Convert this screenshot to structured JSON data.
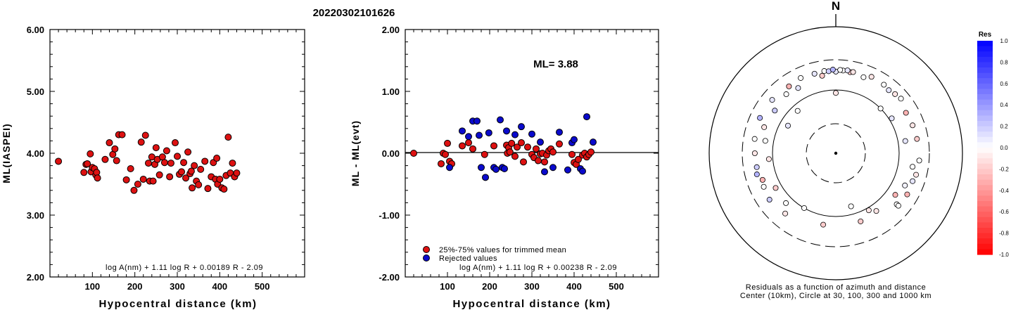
{
  "title": "20220302101626",
  "panels": {
    "left": {
      "ylabel": "ML(IASPEI)",
      "xlabel": "Hypocentral distance (km)",
      "formula": "log A(nm) + 1.11 log R + 0.00189 R - 2.09",
      "yticks": [
        "2.00",
        "3.00",
        "4.00",
        "5.00",
        "6.00"
      ],
      "xticks": [
        "100",
        "200",
        "300",
        "400",
        "500"
      ]
    },
    "middle": {
      "ylabel": "ML - ML(evt)",
      "xlabel": "Hypocentral distance (km)",
      "ml_text": "ML= 3.88",
      "legend": [
        "25%-75% values for trimmed mean",
        "Rejected values"
      ],
      "formula": "log A(nm) + 1.11 log R + 0.00238 R - 2.09",
      "yticks": [
        "-2.00",
        "-1.00",
        "0.00",
        "1.00",
        "2.00"
      ],
      "xticks": [
        "100",
        "200",
        "300",
        "400",
        "500"
      ]
    },
    "polar": {
      "north_label": "N",
      "caption_line1": "Residuals as a function of azimuth and distance",
      "caption_line2": "Center (10km), Circle at 30, 100, 300 and 1000 km"
    },
    "colorbar": {
      "title": "Res",
      "labels": [
        "1.0",
        "0.8",
        "0.6",
        "0.4",
        "0.2",
        "0.0",
        "-0.2",
        "-0.4",
        "-0.6",
        "-0.8",
        "-1.0"
      ]
    }
  },
  "colors": {
    "accepted": "#dd1111",
    "rejected": "#0a0acc",
    "line": "#000000"
  },
  "chart_data": [
    {
      "type": "scatter",
      "name": "ML vs distance",
      "xlim": [
        0,
        600
      ],
      "ylim": [
        2.0,
        6.0
      ],
      "points": [
        [
          20,
          3.87
        ],
        [
          80,
          3.69
        ],
        [
          85,
          3.82
        ],
        [
          88,
          3.83
        ],
        [
          95,
          3.99
        ],
        [
          97,
          3.7
        ],
        [
          100,
          3.77
        ],
        [
          105,
          3.75
        ],
        [
          108,
          3.65
        ],
        [
          110,
          3.69
        ],
        [
          112,
          3.6
        ],
        [
          130,
          3.9
        ],
        [
          140,
          4.17
        ],
        [
          148,
          3.98
        ],
        [
          153,
          4.07
        ],
        [
          157,
          3.88
        ],
        [
          162,
          4.3
        ],
        [
          170,
          4.3
        ],
        [
          180,
          3.57
        ],
        [
          190,
          3.75
        ],
        [
          198,
          3.4
        ],
        [
          207,
          3.5
        ],
        [
          215,
          4.18
        ],
        [
          220,
          3.58
        ],
        [
          225,
          4.29
        ],
        [
          232,
          3.84
        ],
        [
          235,
          3.55
        ],
        [
          240,
          3.94
        ],
        [
          243,
          3.55
        ],
        [
          247,
          3.82
        ],
        [
          250,
          4.09
        ],
        [
          253,
          3.9
        ],
        [
          258,
          3.65
        ],
        [
          265,
          3.94
        ],
        [
          270,
          3.85
        ],
        [
          275,
          4.04
        ],
        [
          282,
          3.62
        ],
        [
          285,
          3.84
        ],
        [
          295,
          4.17
        ],
        [
          300,
          3.95
        ],
        [
          305,
          3.66
        ],
        [
          310,
          3.7
        ],
        [
          315,
          3.85
        ],
        [
          320,
          3.6
        ],
        [
          325,
          4.02
        ],
        [
          330,
          3.67
        ],
        [
          333,
          3.71
        ],
        [
          335,
          3.44
        ],
        [
          340,
          3.8
        ],
        [
          345,
          3.55
        ],
        [
          350,
          3.49
        ],
        [
          355,
          3.74
        ],
        [
          365,
          3.87
        ],
        [
          372,
          3.43
        ],
        [
          380,
          3.62
        ],
        [
          385,
          3.85
        ],
        [
          390,
          3.58
        ],
        [
          393,
          3.92
        ],
        [
          395,
          3.5
        ],
        [
          400,
          3.58
        ],
        [
          405,
          3.44
        ],
        [
          410,
          3.42
        ],
        [
          415,
          3.64
        ],
        [
          420,
          4.26
        ],
        [
          425,
          3.68
        ],
        [
          430,
          3.84
        ],
        [
          435,
          3.62
        ],
        [
          440,
          3.68
        ]
      ]
    },
    {
      "type": "scatter",
      "name": "Residuals",
      "xlim": [
        0,
        600
      ],
      "ylim": [
        -2.0,
        2.0
      ],
      "series": [
        {
          "name": "25%-75% values for trimmed mean",
          "points": [
            [
              20,
              0.0
            ],
            [
              85,
              -0.17
            ],
            [
              90,
              0.0
            ],
            [
              95,
              -0.02
            ],
            [
              100,
              0.16
            ],
            [
              105,
              -0.13
            ],
            [
              110,
              -0.17
            ],
            [
              135,
              0.12
            ],
            [
              150,
              0.17
            ],
            [
              160,
              0.07
            ],
            [
              188,
              -0.02
            ],
            [
              210,
              0.12
            ],
            [
              240,
              0.13
            ],
            [
              242,
              0.0
            ],
            [
              245,
              0.09
            ],
            [
              248,
              0.02
            ],
            [
              252,
              0.16
            ],
            [
              260,
              -0.05
            ],
            [
              265,
              0.1
            ],
            [
              275,
              0.17
            ],
            [
              280,
              -0.14
            ],
            [
              290,
              0.1
            ],
            [
              300,
              -0.02
            ],
            [
              305,
              -0.07
            ],
            [
              310,
              0.07
            ],
            [
              315,
              -0.12
            ],
            [
              320,
              -0.01
            ],
            [
              325,
              0.0
            ],
            [
              330,
              -0.14
            ],
            [
              335,
              -0.03
            ],
            [
              340,
              0.04
            ],
            [
              345,
              0.07
            ],
            [
              350,
              0.02
            ],
            [
              365,
              0.15
            ],
            [
              395,
              -0.02
            ],
            [
              400,
              -0.15
            ],
            [
              405,
              -0.18
            ],
            [
              410,
              -0.1
            ],
            [
              420,
              -0.03
            ],
            [
              425,
              0.0
            ],
            [
              430,
              -0.06
            ],
            [
              435,
              -0.02
            ],
            [
              440,
              0.02
            ]
          ]
        },
        {
          "name": "Rejected values",
          "points": [
            [
              105,
              -0.23
            ],
            [
              135,
              0.36
            ],
            [
              150,
              0.27
            ],
            [
              160,
              0.52
            ],
            [
              170,
              0.52
            ],
            [
              175,
              0.29
            ],
            [
              180,
              -0.23
            ],
            [
              190,
              -0.39
            ],
            [
              198,
              0.33
            ],
            [
              210,
              -0.23
            ],
            [
              215,
              -0.26
            ],
            [
              225,
              0.54
            ],
            [
              230,
              -0.23
            ],
            [
              235,
              -0.25
            ],
            [
              240,
              0.36
            ],
            [
              260,
              0.3
            ],
            [
              275,
              0.43
            ],
            [
              300,
              0.31
            ],
            [
              320,
              0.18
            ],
            [
              330,
              -0.3
            ],
            [
              350,
              -0.23
            ],
            [
              365,
              0.34
            ],
            [
              385,
              -0.27
            ],
            [
              395,
              0.17
            ],
            [
              400,
              0.22
            ],
            [
              415,
              -0.25
            ],
            [
              420,
              -0.29
            ],
            [
              430,
              0.59
            ],
            [
              445,
              0.18
            ]
          ]
        }
      ]
    },
    {
      "type": "scatter",
      "name": "Residuals by azimuth and distance",
      "rings_km": [
        10,
        30,
        100,
        300,
        1000
      ],
      "points_unit": "azimuth_deg, distance_km, residual",
      "points": [
        [
          164,
          75,
          0.0
        ],
        [
          0,
          90,
          -0.1
        ],
        [
          318,
          80,
          0.0
        ],
        [
          300,
          75,
          0.1
        ],
        [
          45,
          100,
          0.0
        ],
        [
          58,
          110,
          0.1
        ],
        [
          150,
          110,
          -0.1
        ],
        [
          210,
          100,
          0.0
        ],
        [
          265,
          115,
          -0.1
        ],
        [
          240,
          125,
          -0.2
        ],
        [
          190,
          140,
          -0.2
        ],
        [
          125,
          140,
          -0.3
        ],
        [
          80,
          130,
          0.1
        ],
        [
          100,
          170,
          0.0
        ],
        [
          115,
          160,
          0.05
        ],
        [
          130,
          180,
          0.0
        ],
        [
          145,
          130,
          -0.1
        ],
        [
          160,
          140,
          -0.2
        ],
        [
          225,
          130,
          0.0
        ],
        [
          250,
          170,
          -0.3
        ],
        [
          280,
          135,
          0.0
        ],
        [
          290,
          160,
          -0.1
        ],
        [
          305,
          150,
          0.2
        ],
        [
          320,
          165,
          0.0
        ],
        [
          330,
          155,
          0.1
        ],
        [
          350,
          175,
          -0.2
        ],
        [
          0,
          195,
          0.1
        ],
        [
          5,
          205,
          0.0
        ],
        [
          10,
          200,
          -0.2
        ],
        [
          20,
          190,
          0.0
        ],
        [
          25,
          215,
          -0.1
        ],
        [
          35,
          210,
          0.0
        ],
        [
          40,
          200,
          0.1
        ],
        [
          45,
          210,
          -0.1
        ],
        [
          50,
          220,
          0.0
        ],
        [
          60,
          190,
          -0.3
        ],
        [
          70,
          195,
          -0.1
        ],
        [
          80,
          200,
          -0.2
        ],
        [
          95,
          210,
          0.0
        ],
        [
          105,
          205,
          -0.1
        ],
        [
          110,
          195,
          0.1
        ],
        [
          120,
          200,
          -0.3
        ],
        [
          130,
          195,
          0.0
        ],
        [
          220,
          175,
          -0.1
        ],
        [
          235,
          190,
          0.2
        ],
        [
          245,
          180,
          0.0
        ],
        [
          255,
          195,
          0.3
        ],
        [
          260,
          185,
          0.2
        ],
        [
          270,
          190,
          -0.1
        ],
        [
          280,
          200,
          0.0
        ],
        [
          295,
          210,
          0.3
        ],
        [
          310,
          205,
          0.1
        ],
        [
          325,
          195,
          -0.3
        ],
        [
          335,
          205,
          0.0
        ],
        [
          345,
          200,
          0.1
        ],
        [
          352,
          205,
          0.0
        ],
        [
          355,
          200,
          0.2
        ],
        [
          358,
          210,
          0.3
        ],
        [
          3,
          208,
          0.0
        ],
        [
          8,
          210,
          0.1
        ],
        [
          12,
          205,
          -0.1
        ]
      ]
    }
  ]
}
